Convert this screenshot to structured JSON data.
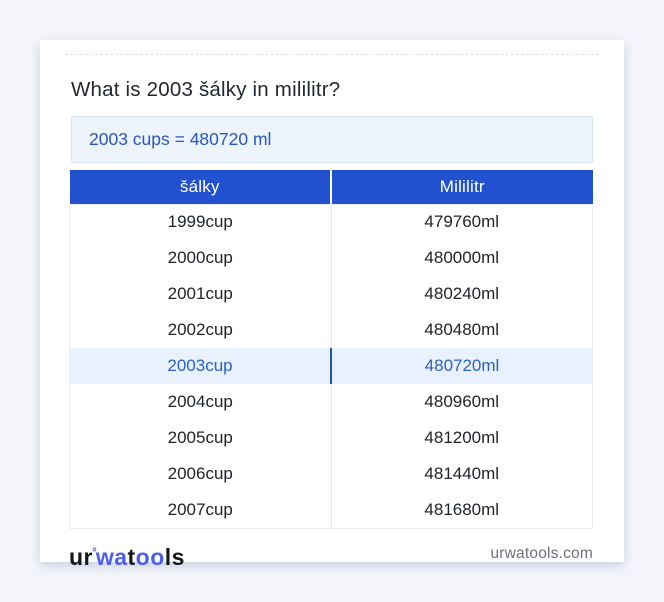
{
  "page": {
    "title": "What is 2003 šálky in mililitr?"
  },
  "result": {
    "text": "2003 cups = 480720 ml"
  },
  "table": {
    "headers": [
      "šálky",
      "Mililitr"
    ],
    "rows": [
      {
        "cups": "1999cup",
        "ml": "479760ml",
        "highlight": false
      },
      {
        "cups": "2000cup",
        "ml": "480000ml",
        "highlight": false
      },
      {
        "cups": "2001cup",
        "ml": "480240ml",
        "highlight": false
      },
      {
        "cups": "2002cup",
        "ml": "480480ml",
        "highlight": false
      },
      {
        "cups": "2003cup",
        "ml": "480720ml",
        "highlight": true
      },
      {
        "cups": "2004cup",
        "ml": "480960ml",
        "highlight": false
      },
      {
        "cups": "2005cup",
        "ml": "481200ml",
        "highlight": false
      },
      {
        "cups": "2006cup",
        "ml": "481440ml",
        "highlight": false
      },
      {
        "cups": "2007cup",
        "ml": "481680ml",
        "highlight": false
      }
    ]
  },
  "footer": {
    "logo": {
      "segments": [
        {
          "text": "ur",
          "style": "dark"
        },
        {
          "text": "°",
          "style": "degree"
        },
        {
          "text": "wa",
          "style": "blue"
        },
        {
          "text": "t",
          "style": "dark"
        },
        {
          "text": "oo",
          "style": "blue"
        },
        {
          "text": "ls",
          "style": "dark"
        }
      ]
    },
    "site": "urwatools.com"
  },
  "colors": {
    "page_background": "#f3f5fa",
    "card_background": "#ffffff",
    "header_blue": "#2151ce",
    "result_background": "#edf4fd",
    "result_border": "#d9e5f5",
    "result_text": "#2857c4",
    "highlight_row_background": "#e8f1fd",
    "highlight_row_text": "#2a62c8",
    "highlight_divider": "#1d55b5",
    "cell_text": "#20242c",
    "footer_text": "#6b7280",
    "logo_blue": "#4a5ef0",
    "logo_dark": "#15171b"
  }
}
